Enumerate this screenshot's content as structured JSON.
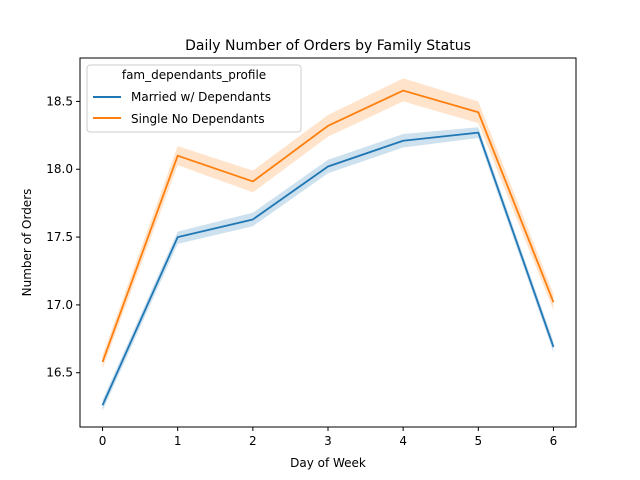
{
  "chart_data": {
    "type": "line",
    "title": "Daily Number of Orders by Family Status",
    "xlabel": "Day of Week",
    "ylabel": "Number of Orders",
    "x": [
      0,
      1,
      2,
      3,
      4,
      5,
      6
    ],
    "xticks": [
      "0",
      "1",
      "2",
      "3",
      "4",
      "5",
      "6"
    ],
    "yticks": [
      16.5,
      17.0,
      17.5,
      18.0,
      18.5
    ],
    "ytick_labels": [
      "16.5",
      "17.0",
      "17.5",
      "18.0",
      "18.5"
    ],
    "xlim": [
      -0.3,
      6.3
    ],
    "ylim": [
      16.1,
      18.82
    ],
    "grid": false,
    "legend": {
      "title": "fam_dependants_profile",
      "placement": "top-left"
    },
    "series": [
      {
        "name": "Married w/ Dependants",
        "color": "#1f77b4",
        "values": [
          16.26,
          17.5,
          17.63,
          18.02,
          18.21,
          18.27,
          16.69
        ],
        "ci_lower": [
          16.22,
          17.45,
          17.58,
          17.97,
          18.16,
          18.23,
          16.65
        ],
        "ci_upper": [
          16.3,
          17.54,
          17.68,
          18.07,
          18.26,
          18.31,
          16.73
        ]
      },
      {
        "name": "Single No Dependants",
        "color": "#ff7f0e",
        "values": [
          16.58,
          18.1,
          17.91,
          18.32,
          18.58,
          18.42,
          17.02
        ],
        "ci_lower": [
          16.53,
          18.03,
          17.83,
          18.24,
          18.5,
          18.34,
          16.96
        ],
        "ci_upper": [
          16.63,
          18.17,
          17.99,
          18.4,
          18.67,
          18.5,
          17.08
        ]
      }
    ]
  }
}
